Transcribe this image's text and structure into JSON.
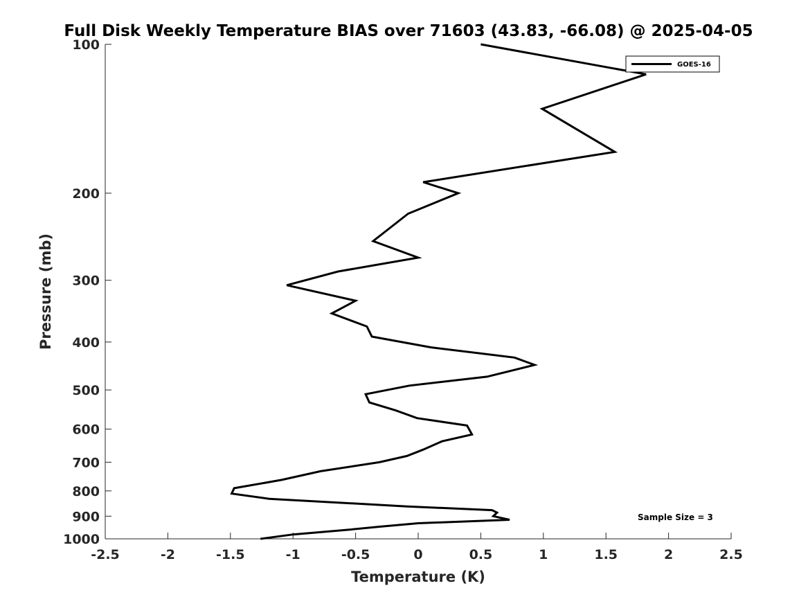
{
  "chart_data": {
    "type": "line",
    "title": "Full Disk Weekly Temperature BIAS over 71603 (43.83, -66.08) @ 2025-04-05",
    "xlabel": "Temperature (K)",
    "ylabel": "Pressure (mb)",
    "xlim": [
      -2.5,
      2.5
    ],
    "ylim": [
      100,
      1000
    ],
    "y_scale": "log",
    "y_reversed": true,
    "grid": false,
    "legend_position": "top-right",
    "x_ticks": [
      "-2.5",
      "-2",
      "-1.5",
      "-1",
      "-0.5",
      "0",
      "0.5",
      "1",
      "1.5",
      "2",
      "2.5"
    ],
    "y_ticks": [
      "100",
      "200",
      "300",
      "400",
      "500",
      "600",
      "700",
      "800",
      "900",
      "1000"
    ],
    "annotation": "Sample Size = 3",
    "series": [
      {
        "name": "GOES-16",
        "color": "#000000",
        "points": [
          [
            0.5,
            100
          ],
          [
            1.82,
            115
          ],
          [
            0.99,
            135
          ],
          [
            1.57,
            165
          ],
          [
            0.04,
            190
          ],
          [
            0.32,
            200
          ],
          [
            -0.08,
            220
          ],
          [
            -0.36,
            250
          ],
          [
            0.0,
            270
          ],
          [
            -0.64,
            288
          ],
          [
            -1.05,
            307
          ],
          [
            -0.5,
            330
          ],
          [
            -0.69,
            350
          ],
          [
            -0.41,
            372
          ],
          [
            -0.37,
            390
          ],
          [
            0.1,
            410
          ],
          [
            0.77,
            430
          ],
          [
            0.93,
            445
          ],
          [
            0.55,
            470
          ],
          [
            -0.07,
            490
          ],
          [
            -0.42,
            510
          ],
          [
            -0.39,
            530
          ],
          [
            -0.18,
            550
          ],
          [
            -0.01,
            570
          ],
          [
            0.39,
            590
          ],
          [
            0.43,
            615
          ],
          [
            0.19,
            635
          ],
          [
            0.04,
            660
          ],
          [
            -0.09,
            680
          ],
          [
            -0.31,
            700
          ],
          [
            -0.78,
            730
          ],
          [
            -1.09,
            760
          ],
          [
            -1.47,
            790
          ],
          [
            -1.49,
            810
          ],
          [
            -1.19,
            830
          ],
          [
            -0.09,
            860
          ],
          [
            0.59,
            875
          ],
          [
            0.63,
            885
          ],
          [
            0.6,
            900
          ],
          [
            0.73,
            915
          ],
          [
            0.0,
            930
          ],
          [
            -0.31,
            945
          ],
          [
            -0.58,
            960
          ],
          [
            -1.0,
            980
          ],
          [
            -1.26,
            1000
          ]
        ]
      }
    ]
  }
}
